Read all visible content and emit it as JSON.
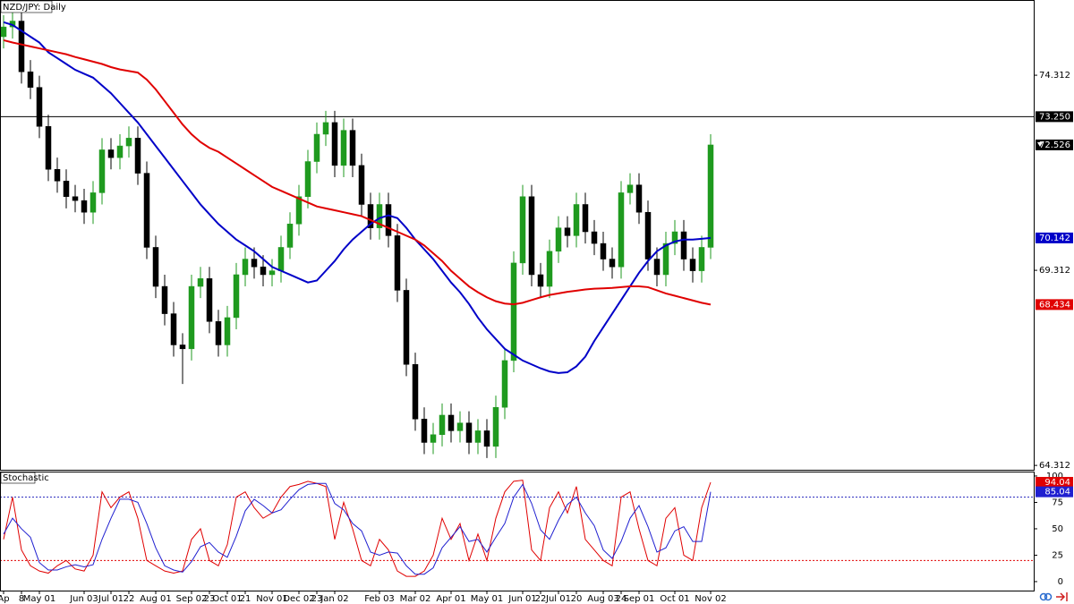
{
  "chart_data": [
    {
      "type": "candlestick",
      "title": "NZD/JPY: Daily",
      "categories": [
        "Ap",
        null,
        "8",
        null,
        "May 01",
        null,
        null,
        null,
        null,
        "Jun 03",
        null,
        null,
        "Jul 01",
        null,
        "22",
        null,
        null,
        "Aug 01",
        null,
        null,
        null,
        "Sep 02",
        null,
        "23",
        null,
        "Oct 01",
        null,
        "21",
        null,
        null,
        "Nov 01",
        null,
        null,
        "Dec 02",
        null,
        "23",
        null,
        "Jan 02",
        null,
        null,
        null,
        null,
        "Feb 03",
        null,
        null,
        null,
        "Mar 02",
        null,
        null,
        null,
        "Apr 01",
        null,
        null,
        null,
        "May 01",
        null,
        null,
        null,
        "Jun 01",
        null,
        "22",
        null,
        "Jul 01",
        null,
        "20",
        null,
        null,
        "Aug 03",
        null,
        "24",
        null,
        "Sep 01",
        null,
        null,
        null,
        "Oct 01",
        null,
        null,
        null,
        "Nov 02"
      ],
      "open": [
        75.3,
        75.55,
        75.7,
        74.4,
        74.0,
        73.0,
        71.9,
        71.6,
        71.2,
        71.1,
        70.8,
        71.3,
        72.4,
        72.2,
        72.5,
        72.7,
        71.8,
        69.9,
        68.9,
        68.2,
        67.4,
        67.3,
        68.9,
        69.1,
        68.0,
        67.4,
        68.1,
        69.2,
        69.6,
        69.4,
        69.2,
        69.3,
        69.9,
        70.5,
        71.2,
        72.1,
        72.8,
        73.1,
        72.0,
        72.9,
        72.0,
        71.0,
        70.4,
        71.0,
        70.2,
        68.8,
        66.9,
        65.5,
        64.9,
        65.1,
        65.6,
        65.2,
        65.4,
        64.9,
        65.2,
        64.8,
        65.8,
        67.0,
        69.5,
        71.2,
        69.2,
        68.9,
        69.8,
        70.4,
        70.2,
        71.0,
        70.3,
        70.0,
        69.6,
        69.4,
        71.3,
        71.5,
        70.8,
        69.6,
        69.2,
        70.0,
        70.3,
        69.6,
        69.3,
        69.9
      ],
      "high": [
        75.85,
        76.0,
        76.0,
        74.7,
        74.3,
        73.3,
        72.2,
        71.9,
        71.5,
        71.4,
        71.6,
        72.7,
        72.7,
        72.8,
        73.0,
        73.0,
        72.1,
        70.2,
        69.2,
        68.5,
        67.7,
        69.2,
        69.4,
        69.4,
        68.3,
        68.4,
        69.5,
        69.9,
        69.9,
        69.7,
        69.6,
        70.2,
        70.8,
        71.5,
        72.4,
        73.1,
        73.4,
        73.4,
        73.2,
        73.2,
        72.3,
        71.3,
        71.3,
        71.3,
        70.5,
        69.1,
        67.2,
        65.8,
        65.4,
        65.9,
        65.9,
        65.7,
        65.7,
        65.5,
        65.5,
        66.1,
        67.3,
        69.8,
        71.5,
        71.5,
        69.5,
        70.1,
        70.7,
        70.7,
        71.3,
        71.3,
        70.6,
        70.3,
        69.9,
        71.6,
        71.8,
        71.8,
        71.1,
        69.9,
        70.3,
        70.6,
        70.6,
        69.9,
        70.2,
        72.8
      ],
      "low": [
        75.0,
        75.25,
        74.1,
        73.7,
        72.7,
        71.6,
        71.3,
        70.9,
        70.8,
        70.5,
        70.5,
        71.0,
        71.9,
        71.9,
        72.2,
        71.5,
        69.6,
        68.6,
        67.9,
        67.1,
        66.4,
        67.0,
        68.6,
        67.7,
        67.1,
        67.1,
        67.8,
        68.9,
        69.1,
        68.9,
        68.9,
        69.0,
        69.6,
        70.2,
        70.9,
        71.8,
        72.5,
        71.7,
        71.7,
        71.7,
        70.7,
        70.1,
        70.1,
        69.9,
        68.5,
        66.6,
        65.2,
        64.6,
        64.6,
        64.8,
        64.9,
        64.9,
        64.6,
        64.6,
        64.5,
        64.5,
        65.5,
        66.7,
        69.2,
        68.9,
        68.6,
        68.6,
        69.5,
        69.9,
        69.9,
        70.0,
        69.7,
        69.3,
        69.1,
        69.1,
        71.0,
        70.5,
        69.3,
        68.9,
        68.9,
        69.7,
        69.3,
        69.0,
        69.0,
        69.6
      ],
      "close": [
        75.55,
        75.7,
        74.4,
        74.0,
        73.0,
        71.9,
        71.6,
        71.2,
        71.1,
        70.8,
        71.3,
        72.4,
        72.2,
        72.5,
        72.7,
        71.8,
        69.9,
        68.9,
        68.2,
        67.4,
        67.3,
        68.9,
        69.1,
        68.0,
        67.4,
        68.1,
        69.2,
        69.6,
        69.4,
        69.2,
        69.3,
        69.9,
        70.5,
        71.2,
        72.1,
        72.8,
        73.1,
        72.0,
        72.9,
        72.0,
        71.0,
        70.4,
        71.0,
        70.2,
        68.8,
        66.9,
        65.5,
        64.9,
        65.1,
        65.6,
        65.2,
        65.4,
        64.9,
        65.2,
        64.8,
        65.8,
        67.0,
        69.5,
        71.2,
        69.2,
        68.9,
        69.8,
        70.4,
        70.2,
        71.0,
        70.3,
        70.0,
        69.6,
        69.4,
        71.3,
        71.5,
        70.8,
        69.6,
        69.2,
        70.0,
        70.3,
        69.6,
        69.3,
        69.9,
        72.526
      ],
      "up_color": "#1f9a1f",
      "down_color": "#000000",
      "last_color": "#000000",
      "series": [
        {
          "color": "#0000c8",
          "values": [
            75.67,
            75.6,
            75.45,
            75.3,
            75.15,
            74.9,
            74.75,
            74.6,
            74.45,
            74.35,
            74.25,
            74.05,
            73.85,
            73.6,
            73.35,
            73.1,
            72.8,
            72.5,
            72.2,
            71.9,
            71.6,
            71.3,
            71.0,
            70.75,
            70.5,
            70.3,
            70.1,
            69.95,
            69.8,
            69.6,
            69.4,
            69.3,
            69.2,
            69.1,
            69.0,
            69.05,
            69.3,
            69.55,
            69.85,
            70.1,
            70.3,
            70.5,
            70.65,
            70.72,
            70.65,
            70.4,
            70.1,
            69.85,
            69.6,
            69.3,
            69.0,
            68.75,
            68.45,
            68.1,
            67.8,
            67.55,
            67.3,
            67.15,
            67.0,
            66.9,
            66.8,
            66.72,
            66.68,
            66.7,
            66.85,
            67.1,
            67.5,
            67.85,
            68.2,
            68.55,
            68.9,
            69.25,
            69.55,
            69.8,
            69.95,
            70.05,
            70.1,
            70.1,
            70.12,
            70.142
          ]
        },
        {
          "color": "#e00000",
          "values": [
            75.21,
            75.15,
            75.1,
            75.05,
            75.0,
            74.95,
            74.9,
            74.85,
            74.78,
            74.72,
            74.66,
            74.6,
            74.52,
            74.46,
            74.42,
            74.38,
            74.2,
            73.95,
            73.65,
            73.35,
            73.05,
            72.8,
            72.6,
            72.45,
            72.35,
            72.2,
            72.05,
            71.9,
            71.75,
            71.6,
            71.45,
            71.35,
            71.25,
            71.15,
            71.05,
            70.95,
            70.9,
            70.85,
            70.8,
            70.75,
            70.7,
            70.6,
            70.5,
            70.4,
            70.3,
            70.2,
            70.1,
            69.95,
            69.75,
            69.55,
            69.3,
            69.1,
            68.9,
            68.75,
            68.62,
            68.52,
            68.46,
            68.44,
            68.48,
            68.55,
            68.62,
            68.68,
            68.72,
            68.76,
            68.79,
            68.82,
            68.84,
            68.85,
            68.86,
            68.88,
            68.9,
            68.9,
            68.88,
            68.8,
            68.72,
            68.66,
            68.6,
            68.54,
            68.48,
            68.434
          ]
        }
      ],
      "hline": {
        "value": 73.25,
        "label": "73.250",
        "color": "#000000"
      },
      "ylim": [
        64.2,
        76.24
      ],
      "yticks": [
        74.312,
        69.312,
        64.312
      ]
    },
    {
      "type": "line",
      "title": "Stochastic",
      "series": [
        {
          "color": "#e00000",
          "values": [
            40,
            80,
            30,
            15,
            10,
            8,
            15,
            20,
            12,
            10,
            25,
            85,
            70,
            80,
            85,
            60,
            20,
            15,
            10,
            8,
            10,
            40,
            50,
            20,
            15,
            35,
            80,
            85,
            70,
            60,
            65,
            80,
            90,
            92,
            95,
            93,
            90,
            40,
            75,
            50,
            20,
            15,
            40,
            30,
            10,
            5,
            5,
            10,
            25,
            60,
            40,
            55,
            20,
            45,
            20,
            60,
            85,
            95,
            96,
            30,
            20,
            70,
            85,
            65,
            90,
            40,
            30,
            20,
            15,
            80,
            85,
            50,
            20,
            15,
            60,
            70,
            25,
            20,
            70,
            94.04
          ]
        },
        {
          "color": "#2020d0",
          "values": [
            45,
            60,
            50,
            42,
            18,
            11,
            11,
            14,
            16,
            14,
            16,
            40,
            60,
            78,
            78,
            75,
            55,
            32,
            15,
            11,
            9,
            19,
            33,
            37,
            28,
            23,
            43,
            67,
            78,
            72,
            65,
            68,
            78,
            87,
            92,
            93,
            93,
            74,
            68,
            55,
            48,
            28,
            25,
            28,
            27,
            15,
            7,
            7,
            13,
            32,
            42,
            52,
            38,
            40,
            28,
            42,
            55,
            80,
            92,
            74,
            49,
            40,
            58,
            73,
            80,
            65,
            53,
            30,
            22,
            38,
            60,
            72,
            52,
            28,
            32,
            48,
            52,
            38,
            38,
            85.04
          ]
        }
      ],
      "levels": [
        {
          "value": 80,
          "color": "#3030c0"
        },
        {
          "value": 20,
          "color": "#e00000"
        }
      ],
      "ylim": [
        -8.5,
        104.2
      ],
      "yticks": [
        100,
        75,
        50,
        25,
        0
      ]
    }
  ]
}
